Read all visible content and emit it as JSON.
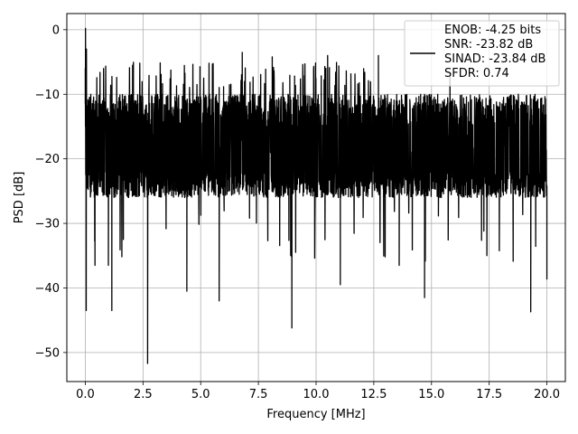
{
  "chart_data": {
    "type": "line",
    "title": "",
    "xlabel": "Frequency [MHz]",
    "ylabel": "PSD [dB]",
    "xlim": [
      -0.8,
      20.8
    ],
    "ylim": [
      -54.5,
      2.5
    ],
    "xticks": [
      0.0,
      2.5,
      5.0,
      7.5,
      10.0,
      12.5,
      15.0,
      17.5,
      20.0
    ],
    "xtick_labels": [
      "0.0",
      "2.5",
      "5.0",
      "7.5",
      "10.0",
      "12.5",
      "15.0",
      "17.5",
      "20.0"
    ],
    "yticks": [
      0,
      -10,
      -20,
      -30,
      -40,
      -50
    ],
    "ytick_labels": [
      "0",
      "−10",
      "−20",
      "−30",
      "−40",
      "−50"
    ],
    "grid": true,
    "legend_position": "top-right",
    "series": [
      {
        "color": "#000000",
        "x_range": [
          0.0,
          20.0
        ],
        "noise_floor_db": -18,
        "typical_band_db": [
          -26,
          -10
        ],
        "points": [
          {
            "x": 0.0,
            "y": -6
          },
          {
            "x": 0.01,
            "y": 0.2
          },
          {
            "x": 0.04,
            "y": -43.5
          },
          {
            "x": 0.05,
            "y": -3
          },
          {
            "x": 0.42,
            "y": -36.5
          },
          {
            "x": 1.0,
            "y": -36.5
          },
          {
            "x": 1.15,
            "y": -43.5
          },
          {
            "x": 1.65,
            "y": -32.5
          },
          {
            "x": 2.05,
            "y": -5.5
          },
          {
            "x": 2.7,
            "y": -51.7
          },
          {
            "x": 4.4,
            "y": -40.5
          },
          {
            "x": 5.8,
            "y": -42.0
          },
          {
            "x": 6.8,
            "y": -3.5
          },
          {
            "x": 8.1,
            "y": -4.2
          },
          {
            "x": 8.95,
            "y": -46.2
          },
          {
            "x": 10.5,
            "y": -4.0
          },
          {
            "x": 11.05,
            "y": -39.5
          },
          {
            "x": 12.7,
            "y": -4.0
          },
          {
            "x": 13.6,
            "y": -36.5
          },
          {
            "x": 14.7,
            "y": -41.5
          },
          {
            "x": 15.8,
            "y": -6.8
          },
          {
            "x": 17.4,
            "y": -35.0
          },
          {
            "x": 19.3,
            "y": -43.7
          },
          {
            "x": 20.0,
            "y": -38.7
          }
        ]
      }
    ],
    "legend": {
      "lines": [
        "ENOB: -4.25 bits",
        "SNR: -23.82 dB",
        "SINAD: -23.84 dB",
        "SFDR: 0.74"
      ]
    }
  }
}
